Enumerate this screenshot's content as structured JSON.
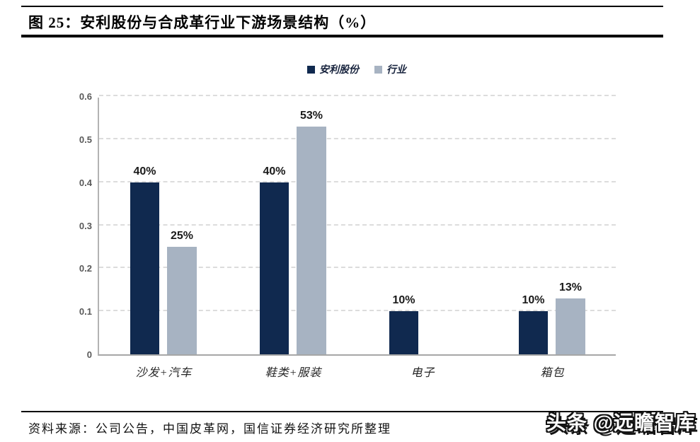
{
  "header": {
    "title": "图 25：安利股份与合成革行业下游场景结构（%）"
  },
  "chart_data": {
    "type": "bar",
    "title": "安利股份与合成革行业下游场景结构（%）",
    "categories": [
      "沙发+汽车",
      "鞋类+服装",
      "电子",
      "箱包"
    ],
    "series": [
      {
        "name": "安利股份",
        "color": "#10294f",
        "values": [
          0.4,
          0.4,
          0.1,
          0.1
        ],
        "labels": [
          "40%",
          "40%",
          "10%",
          "10%"
        ]
      },
      {
        "name": "行业",
        "color": "#a7b3c2",
        "values": [
          0.25,
          0.53,
          null,
          0.13
        ],
        "labels": [
          "25%",
          "53%",
          null,
          "13%"
        ]
      }
    ],
    "xlabel": "",
    "ylabel": "",
    "ylim": [
      0,
      0.6
    ],
    "yticks": [
      0,
      0.1,
      0.2,
      0.3,
      0.4,
      0.5,
      0.6
    ],
    "ytick_labels": [
      "0",
      "0.1",
      "0.2",
      "0.3",
      "0.4",
      "0.5",
      "0.6"
    ],
    "grid": "horizontal-dashed",
    "legend_position": "top-center"
  },
  "footer": {
    "source": "资料来源：公司公告，中国皮革网，国信证券经济研究所整理",
    "watermark": "头条 @远瞻智库"
  }
}
